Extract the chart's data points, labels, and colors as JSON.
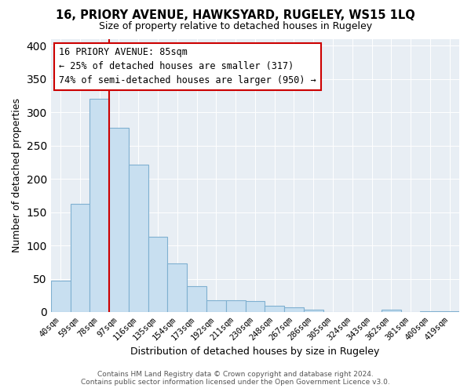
{
  "title": "16, PRIORY AVENUE, HAWKSYARD, RUGELEY, WS15 1LQ",
  "subtitle": "Size of property relative to detached houses in Rugeley",
  "xlabel": "Distribution of detached houses by size in Rugeley",
  "ylabel": "Number of detached properties",
  "bar_labels": [
    "40sqm",
    "59sqm",
    "78sqm",
    "97sqm",
    "116sqm",
    "135sqm",
    "154sqm",
    "173sqm",
    "192sqm",
    "211sqm",
    "230sqm",
    "248sqm",
    "267sqm",
    "286sqm",
    "305sqm",
    "324sqm",
    "343sqm",
    "362sqm",
    "381sqm",
    "400sqm",
    "419sqm"
  ],
  "bar_values": [
    47,
    163,
    320,
    277,
    222,
    113,
    73,
    39,
    18,
    18,
    17,
    10,
    7,
    3,
    0,
    0,
    0,
    3,
    0,
    1,
    1
  ],
  "bar_color": "#c8dff0",
  "bar_edge_color": "#7fb0d0",
  "vline_color": "#cc0000",
  "annotation_title": "16 PRIORY AVENUE: 85sqm",
  "annotation_line1": "← 25% of detached houses are smaller (317)",
  "annotation_line2": "74% of semi-detached houses are larger (950) →",
  "annotation_box_color": "white",
  "annotation_box_edge": "#cc0000",
  "plot_bg_color": "#e8eef4",
  "ylim": [
    0,
    410
  ],
  "yticks": [
    0,
    50,
    100,
    150,
    200,
    250,
    300,
    350,
    400
  ],
  "footer1": "Contains HM Land Registry data © Crown copyright and database right 2024.",
  "footer2": "Contains public sector information licensed under the Open Government Licence v3.0."
}
